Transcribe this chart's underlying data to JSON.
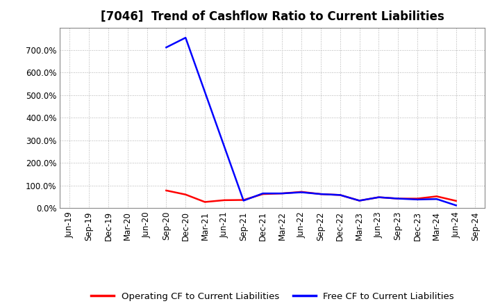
{
  "title": "[7046]  Trend of Cashflow Ratio to Current Liabilities",
  "x_labels": [
    "Jun-19",
    "Sep-19",
    "Dec-19",
    "Mar-20",
    "Jun-20",
    "Sep-20",
    "Dec-20",
    "Mar-21",
    "Jun-21",
    "Sep-21",
    "Dec-21",
    "Mar-22",
    "Jun-22",
    "Sep-22",
    "Dec-22",
    "Mar-23",
    "Jun-23",
    "Sep-23",
    "Dec-23",
    "Mar-24",
    "Jun-24",
    "Sep-24"
  ],
  "operating_cf": [
    null,
    null,
    null,
    null,
    null,
    0.78,
    0.6,
    0.27,
    0.35,
    0.36,
    0.62,
    0.65,
    0.72,
    0.62,
    0.58,
    0.33,
    0.48,
    0.42,
    0.42,
    0.52,
    0.32,
    null
  ],
  "free_cf": [
    null,
    null,
    null,
    null,
    null,
    7.12,
    7.55,
    null,
    null,
    0.33,
    0.65,
    0.65,
    0.7,
    0.62,
    0.58,
    0.33,
    0.48,
    0.42,
    0.38,
    0.4,
    0.12,
    null
  ],
  "operating_color": "#ff0000",
  "free_color": "#0000ff",
  "background_color": "#ffffff",
  "plot_bg_color": "#ffffff",
  "grid_color": "#b0b0b0",
  "ylim": [
    0,
    8.0
  ],
  "yticks": [
    0,
    1.0,
    2.0,
    3.0,
    4.0,
    5.0,
    6.0,
    7.0
  ],
  "ytick_labels": [
    "0.0%",
    "100.0%",
    "200.0%",
    "300.0%",
    "400.0%",
    "500.0%",
    "600.0%",
    "700.0%"
  ],
  "legend_operating": "Operating CF to Current Liabilities",
  "legend_free": "Free CF to Current Liabilities",
  "title_fontsize": 12,
  "axis_fontsize": 8.5,
  "legend_fontsize": 9.5,
  "line_width": 1.8
}
